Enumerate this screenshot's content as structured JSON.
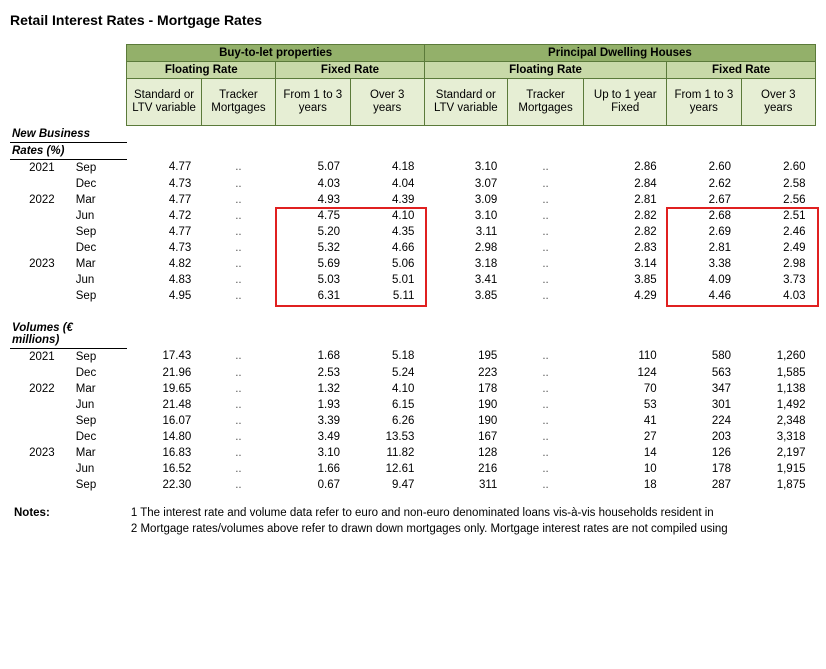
{
  "title": "Retail Interest Rates - Mortgage Rates",
  "colors": {
    "header_dark": "#93b06a",
    "header_mid": "#c8d9a8",
    "header_light": "#e6eed4",
    "border": "#5b7a3a",
    "highlight_border": "#e02020"
  },
  "headers": {
    "group1": "Buy-to-let properties",
    "group2": "Principal Dwelling Houses",
    "floating": "Floating Rate",
    "fixed": "Fixed Rate",
    "cols": [
      "Standard or LTV variable",
      "Tracker Mortgages",
      "From 1 to 3 years",
      "Over 3 years",
      "Standard or LTV variable",
      "Tracker Mortgages",
      "Up to 1 year Fixed",
      "From 1 to 3 years",
      "Over 3 years"
    ]
  },
  "sections": {
    "new_business": "New Business",
    "rates": "Rates (%)",
    "volumes": "Volumes (€ millions)"
  },
  "rates_rows": [
    {
      "year": "2021",
      "month": "Sep",
      "v": [
        "4.77",
        "..",
        "5.07",
        "4.18",
        "3.10",
        "..",
        "2.86",
        "2.60",
        "2.60"
      ]
    },
    {
      "year": "",
      "month": "Dec",
      "v": [
        "4.73",
        "..",
        "4.03",
        "4.04",
        "3.07",
        "..",
        "2.84",
        "2.62",
        "2.58"
      ]
    },
    {
      "year": "2022",
      "month": "Mar",
      "v": [
        "4.77",
        "..",
        "4.93",
        "4.39",
        "3.09",
        "..",
        "2.81",
        "2.67",
        "2.56"
      ]
    },
    {
      "year": "",
      "month": "Jun",
      "v": [
        "4.72",
        "..",
        "4.75",
        "4.10",
        "3.10",
        "..",
        "2.82",
        "2.68",
        "2.51"
      ]
    },
    {
      "year": "",
      "month": "Sep",
      "v": [
        "4.77",
        "..",
        "5.20",
        "4.35",
        "3.11",
        "..",
        "2.82",
        "2.69",
        "2.46"
      ]
    },
    {
      "year": "",
      "month": "Dec",
      "v": [
        "4.73",
        "..",
        "5.32",
        "4.66",
        "2.98",
        "..",
        "2.83",
        "2.81",
        "2.49"
      ]
    },
    {
      "year": "2023",
      "month": "Mar",
      "v": [
        "4.82",
        "..",
        "5.69",
        "5.06",
        "3.18",
        "..",
        "3.14",
        "3.38",
        "2.98"
      ]
    },
    {
      "year": "",
      "month": "Jun",
      "v": [
        "4.83",
        "..",
        "5.03",
        "5.01",
        "3.41",
        "..",
        "3.85",
        "4.09",
        "3.73"
      ]
    },
    {
      "year": "",
      "month": "Sep",
      "v": [
        "4.95",
        "..",
        "6.31",
        "5.11",
        "3.85",
        "..",
        "4.29",
        "4.46",
        "4.03"
      ]
    }
  ],
  "volumes_rows": [
    {
      "year": "2021",
      "month": "Sep",
      "v": [
        "17.43",
        "..",
        "1.68",
        "5.18",
        "195",
        "..",
        "110",
        "580",
        "1,260"
      ]
    },
    {
      "year": "",
      "month": "Dec",
      "v": [
        "21.96",
        "..",
        "2.53",
        "5.24",
        "223",
        "..",
        "124",
        "563",
        "1,585"
      ]
    },
    {
      "year": "2022",
      "month": "Mar",
      "v": [
        "19.65",
        "..",
        "1.32",
        "4.10",
        "178",
        "..",
        "70",
        "347",
        "1,138"
      ]
    },
    {
      "year": "",
      "month": "Jun",
      "v": [
        "21.48",
        "..",
        "1.93",
        "6.15",
        "190",
        "..",
        "53",
        "301",
        "1,492"
      ]
    },
    {
      "year": "",
      "month": "Sep",
      "v": [
        "16.07",
        "..",
        "3.39",
        "6.26",
        "190",
        "..",
        "41",
        "224",
        "2,348"
      ]
    },
    {
      "year": "",
      "month": "Dec",
      "v": [
        "14.80",
        "..",
        "3.49",
        "13.53",
        "167",
        "..",
        "27",
        "203",
        "3,318"
      ]
    },
    {
      "year": "2023",
      "month": "Mar",
      "v": [
        "16.83",
        "..",
        "3.10",
        "11.82",
        "128",
        "..",
        "14",
        "126",
        "2,197"
      ]
    },
    {
      "year": "",
      "month": "Jun",
      "v": [
        "16.52",
        "..",
        "1.66",
        "12.61",
        "216",
        "..",
        "10",
        "178",
        "1,915"
      ]
    },
    {
      "year": "",
      "month": "Sep",
      "v": [
        "22.30",
        "..",
        "0.67",
        "9.47",
        "311",
        "..",
        "18",
        "287",
        "1,875"
      ]
    }
  ],
  "notes_label": "Notes:",
  "notes": [
    "1 The interest rate and volume data refer to euro and non-euro denominated loans vis-à-vis households resident in",
    "2  Mortgage rates/volumes above refer to drawn down mortgages only. Mortgage interest rates are not compiled using"
  ],
  "highlight": {
    "box1": {
      "cols": [
        2,
        3
      ],
      "rows": [
        3,
        8
      ]
    },
    "box2": {
      "cols": [
        7,
        8
      ],
      "rows": [
        3,
        8
      ]
    }
  }
}
